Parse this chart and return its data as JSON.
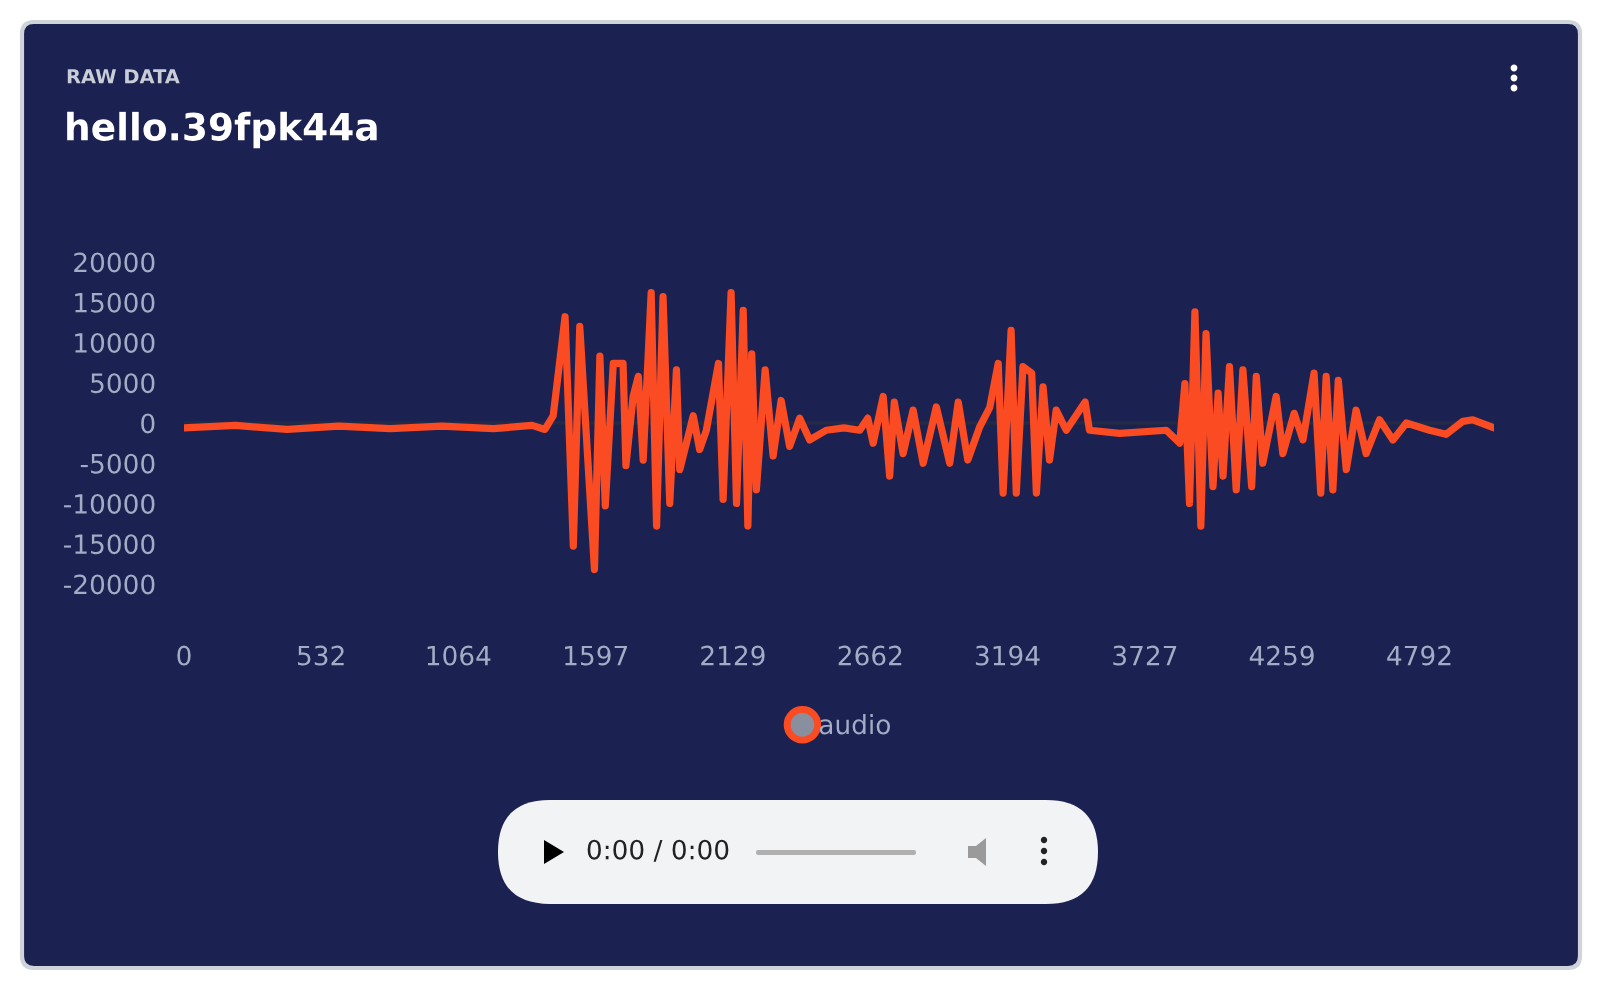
{
  "chart_data": {
    "type": "line",
    "subtitle": "RAW DATA",
    "title": "hello.39fpk44a",
    "x": [
      0,
      200,
      400,
      600,
      800,
      1000,
      1200,
      1350,
      1400,
      1432,
      1478,
      1510,
      1535,
      1592,
      1613,
      1634,
      1665,
      1703,
      1714,
      1742,
      1762,
      1781,
      1812,
      1833,
      1858,
      1884,
      1910,
      1923,
      1975,
      2000,
      2026,
      2073,
      2091,
      2122,
      2143,
      2169,
      2187,
      2202,
      2220,
      2254,
      2285,
      2316,
      2349,
      2388,
      2427,
      2491,
      2560,
      2621,
      2652,
      2673,
      2712,
      2737,
      2755,
      2789,
      2828,
      2867,
      2918,
      2970,
      3003,
      3040,
      3086,
      3125,
      3158,
      3177,
      3208,
      3228,
      3254,
      3288,
      3306,
      3332,
      3357,
      3383,
      3422,
      3495,
      3512,
      3629,
      3810,
      3862,
      3882,
      3900,
      3921,
      3944,
      3964,
      3991,
      4011,
      4030,
      4055,
      4081,
      4107,
      4141,
      4159,
      4184,
      4236,
      4262,
      4306,
      4340,
      4383,
      4409,
      4430,
      4456,
      4477,
      4508,
      4546,
      4585,
      4637,
      4689,
      4741,
      4831,
      4895,
      4960,
      4999,
      5081
    ],
    "series": [
      {
        "name": "audio",
        "color": "#fa4b22",
        "values": [
          -600,
          -300,
          -800,
          -400,
          -700,
          -400,
          -700,
          -300,
          -800,
          900,
          13200,
          -15300,
          12000,
          -18200,
          8300,
          -10300,
          7400,
          7400,
          -5300,
          3300,
          5800,
          -4600,
          16200,
          -12800,
          15700,
          -10000,
          6600,
          -5800,
          900,
          -3300,
          -900,
          7400,
          -9500,
          16200,
          -10000,
          14000,
          -12800,
          8600,
          -8300,
          6600,
          -4100,
          2800,
          -2900,
          600,
          -2100,
          -900,
          -600,
          -900,
          600,
          -2500,
          3300,
          -6600,
          2600,
          -3800,
          1600,
          -5000,
          2000,
          -5000,
          2600,
          -4600,
          -500,
          1900,
          7400,
          -8700,
          11500,
          -8700,
          7000,
          6200,
          -8700,
          4500,
          -4600,
          1600,
          -900,
          2600,
          -900,
          -1300,
          -900,
          -2500,
          4900,
          -10000,
          13800,
          -12800,
          11100,
          -7900,
          3700,
          -6600,
          7000,
          -8300,
          6600,
          -7900,
          5800,
          -5000,
          3300,
          -3800,
          1200,
          -2100,
          6200,
          -8700,
          5800,
          -8300,
          5300,
          -5800,
          1600,
          -3800,
          400,
          -2100,
          0,
          -900,
          -1400,
          200,
          400,
          -600
        ]
      }
    ],
    "xlim": [
      0,
      5081
    ],
    "xticks": [
      0,
      532,
      1064,
      1597,
      2129,
      2662,
      3194,
      3727,
      4259,
      4792
    ],
    "ylim": [
      -20000,
      20000
    ],
    "yticks": [
      -20000,
      -15000,
      -10000,
      -5000,
      0,
      5000,
      10000,
      15000,
      20000
    ],
    "grid": false,
    "ref_lines": [
      {
        "axis": "y",
        "value": 0,
        "color": "#232a45"
      }
    ],
    "legend": "bottom",
    "marker": "none",
    "line_style": "solid",
    "annotations": [
      "0:00 / 0:00"
    ]
  }
}
